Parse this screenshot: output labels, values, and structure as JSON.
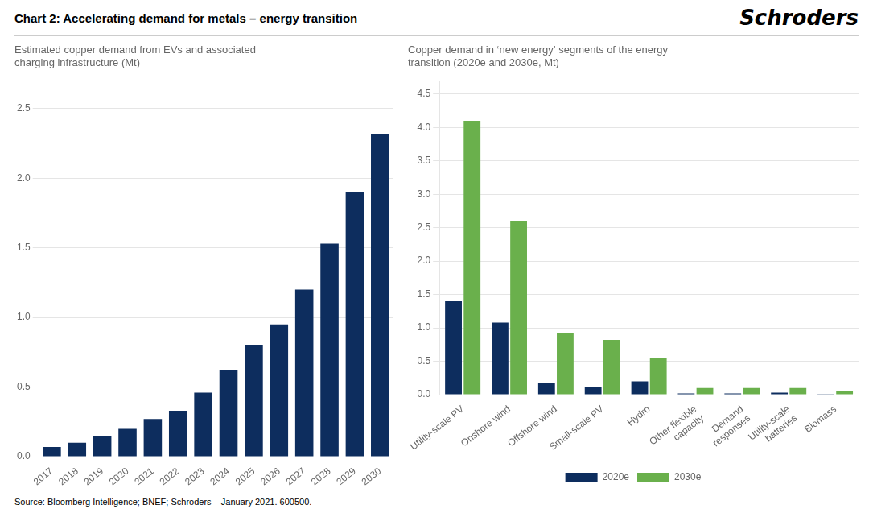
{
  "title": "Chart 2: Accelerating demand for metals – energy transition",
  "annotations": [
    "Schroders",
    "Source: Bloomberg Intelligence; BNEF; Schroders – January 2021. 600500."
  ],
  "chart_data": [
    {
      "type": "bar",
      "subtitle": "Estimated copper demand from EVs and associated\ncharging infrastructure (Mt)",
      "categories": [
        "2017",
        "2018",
        "2019",
        "2020",
        "2021",
        "2022",
        "2023",
        "2024",
        "2025",
        "2026",
        "2027",
        "2028",
        "2029",
        "2030"
      ],
      "values": [
        0.07,
        0.1,
        0.15,
        0.2,
        0.27,
        0.33,
        0.46,
        0.62,
        0.8,
        0.95,
        1.2,
        1.53,
        1.9,
        2.32
      ],
      "color": "#0d2d5e",
      "ylim": [
        0,
        2.7
      ],
      "yticks": [
        {
          "value": 0.0,
          "label": "0.0"
        },
        0.5,
        {
          "value": 1.0,
          "label": "1.0"
        },
        1.5,
        {
          "value": 2.0,
          "label": "2.0"
        },
        2.5
      ],
      "grid": true
    },
    {
      "type": "bar",
      "subtitle": "Copper demand in ‘new energy’ segments of the energy\ntransition (2020e and 2030e, Mt)",
      "categories": [
        "Utility-scale PV",
        "Onshore wind",
        "Offshore wind",
        "Small-scale PV",
        "Hydro",
        "Other flexible\ncapacity",
        "Demand\nresponses",
        "Utility-scale\nbatteries",
        "Biomass"
      ],
      "series": [
        {
          "name": "2020e",
          "color": "#0d2d5e",
          "values": [
            1.4,
            1.08,
            0.18,
            0.12,
            0.2,
            0.02,
            0.02,
            0.03,
            0.01
          ]
        },
        {
          "name": "2030e",
          "color": "#6ab04c",
          "values": [
            4.1,
            2.6,
            0.92,
            0.82,
            0.55,
            0.1,
            0.1,
            0.1,
            0.05
          ]
        }
      ],
      "ylim": [
        0,
        4.7
      ],
      "yticks": [
        {
          "value": 0.0,
          "label": "0.0"
        },
        0.5,
        {
          "value": 1.0,
          "label": "1.0"
        },
        1.5,
        {
          "value": 2.0,
          "label": "2.0"
        },
        2.5,
        {
          "value": 3.0,
          "label": "3.0"
        },
        3.5,
        {
          "value": 4.0,
          "label": "4.0"
        },
        4.5
      ],
      "grid": true,
      "legend": "bottom"
    }
  ]
}
